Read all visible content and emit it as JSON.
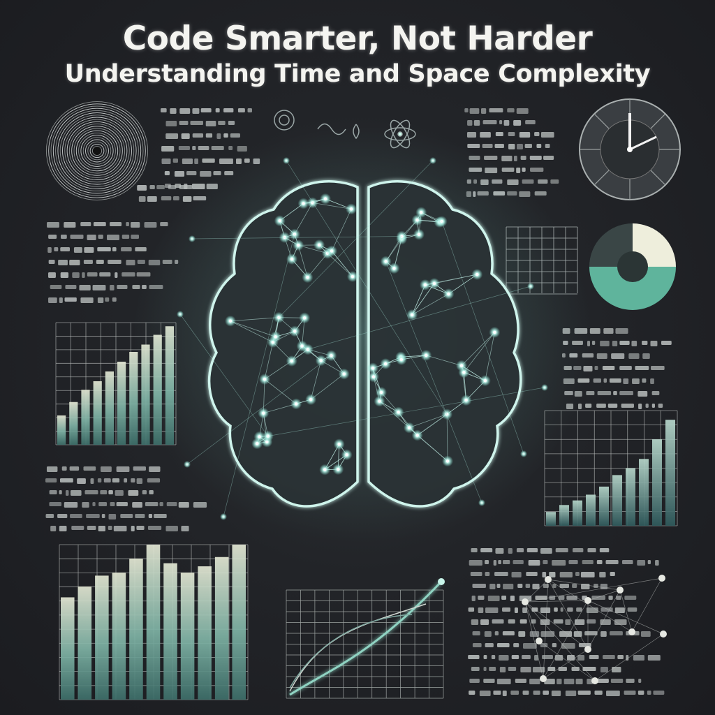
{
  "poster": {
    "title": "Code Smarter, Not Harder",
    "subtitle": "Understanding  Time and Space Complexity"
  },
  "colors": {
    "background": "#1f2125",
    "accent_glow": "#9ff5e6",
    "bar_teal": "#5aa090",
    "bar_light": "#dfe3cf",
    "title_text": "#f4f4f0"
  },
  "icons": [
    "concentric-spiral-icon",
    "atom-icon",
    "clock-icon",
    "pie-chart-icon",
    "brain-network-icon"
  ]
}
